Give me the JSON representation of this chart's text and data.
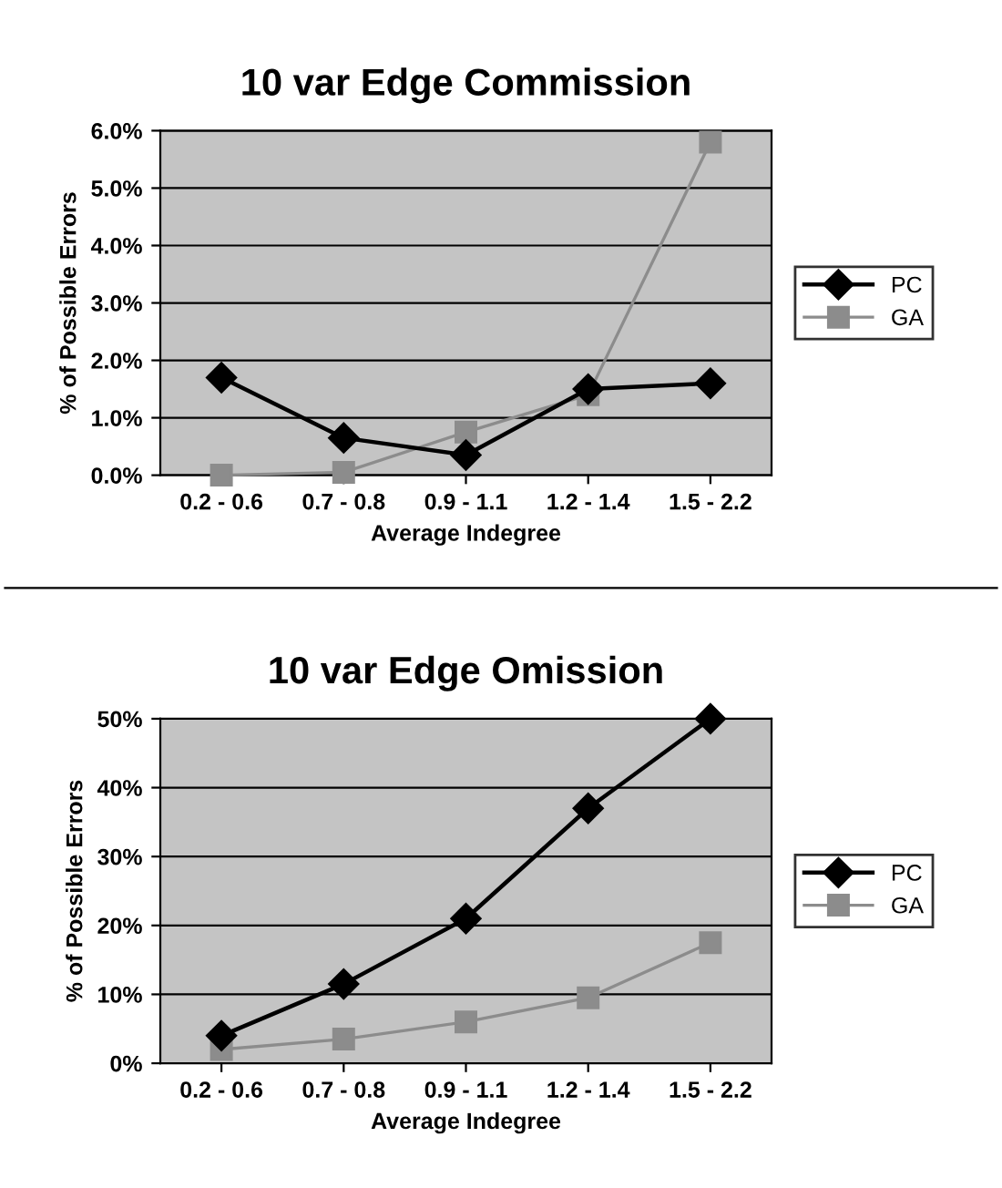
{
  "chart_data": [
    {
      "type": "line",
      "title": "10 var Edge Commission",
      "xlabel": "Average Indegree",
      "ylabel": "% of Possible Errors",
      "categories": [
        "0.2 - 0.6",
        "0.7 - 0.8",
        "0.9 - 1.1",
        "1.2 - 1.4",
        "1.5 - 2.2"
      ],
      "series": [
        {
          "name": "PC",
          "color": "#000000",
          "values": [
            1.7,
            0.65,
            0.35,
            1.5,
            1.6
          ],
          "marker": "diamond"
        },
        {
          "name": "GA",
          "color": "#8c8c8c",
          "values": [
            0.0,
            0.05,
            0.75,
            1.4,
            5.8
          ],
          "marker": "square"
        }
      ],
      "ylim": [
        0,
        6
      ],
      "yticks": [
        {
          "value": 0,
          "label": "0.0%"
        },
        {
          "value": 1,
          "label": "1.0%"
        },
        {
          "value": 2,
          "label": "2.0%"
        },
        {
          "value": 3,
          "label": "3.0%"
        },
        {
          "value": 4,
          "label": "4.0%"
        },
        {
          "value": 5,
          "label": "5.0%"
        },
        {
          "value": 6,
          "label": "6.0%"
        }
      ],
      "grid": "y",
      "legend": "right"
    },
    {
      "type": "line",
      "title": "10 var Edge Omission",
      "xlabel": "Average Indegree",
      "ylabel": "% of Possible Errors",
      "categories": [
        "0.2 - 0.6",
        "0.7 - 0.8",
        "0.9 - 1.1",
        "1.2 - 1.4",
        "1.5 - 2.2"
      ],
      "series": [
        {
          "name": "PC",
          "color": "#000000",
          "values": [
            4,
            11.5,
            21,
            37,
            50
          ],
          "marker": "diamond"
        },
        {
          "name": "GA",
          "color": "#8c8c8c",
          "values": [
            2,
            3.5,
            6,
            9.5,
            17.5
          ],
          "marker": "square"
        }
      ],
      "ylim": [
        0,
        50
      ],
      "yticks": [
        {
          "value": 0,
          "label": "0%"
        },
        {
          "value": 10,
          "label": "10%"
        },
        {
          "value": 20,
          "label": "20%"
        },
        {
          "value": 30,
          "label": "30%"
        },
        {
          "value": 40,
          "label": "40%"
        },
        {
          "value": 50,
          "label": "50%"
        }
      ],
      "grid": "y",
      "legend": "right"
    }
  ]
}
